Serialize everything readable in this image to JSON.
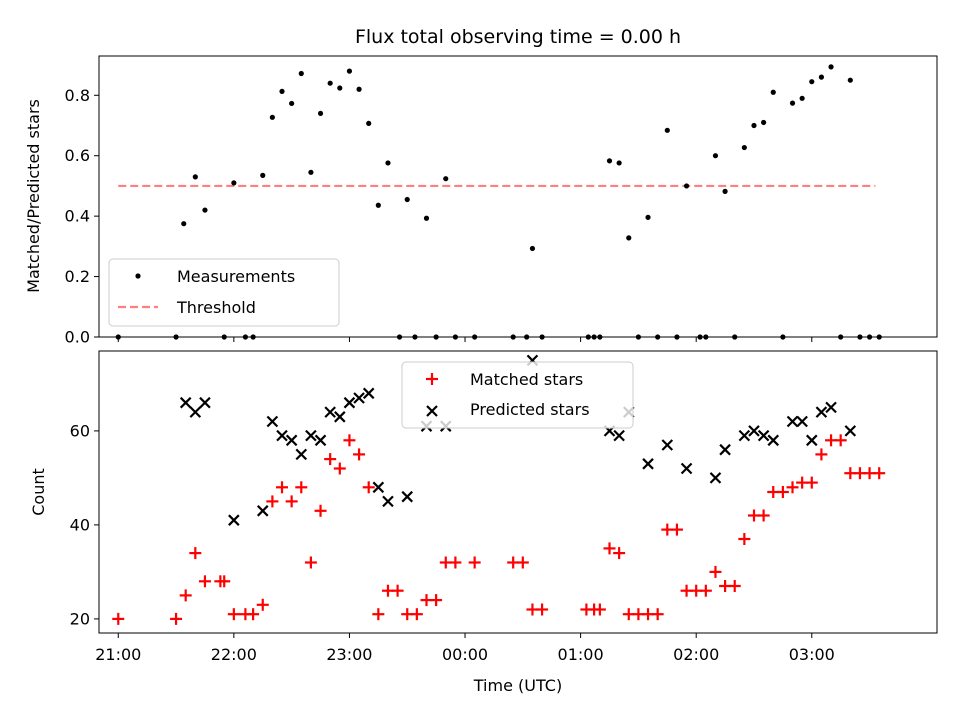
{
  "chart_data": [
    {
      "type": "scatter",
      "title": "Flux total observing time = 0.00 h",
      "xlabel": "",
      "ylabel": "Matched/Predicted stars",
      "xlim": [
        "20:50",
        "04:05"
      ],
      "ylim": [
        0,
        0.93
      ],
      "yticks": [
        "0.0",
        "0.2",
        "0.4",
        "0.6",
        "0.8"
      ],
      "ytick_values": [
        0,
        0.2,
        0.4,
        0.6,
        0.8
      ],
      "xtick_values": [
        "21:00",
        "22:00",
        "23:00",
        "00:00",
        "01:00",
        "02:00",
        "03:00"
      ],
      "grid": false,
      "legend": {
        "position": "lower-left",
        "entries": [
          "Measurements",
          "Threshold"
        ]
      },
      "threshold": {
        "name": "Threshold",
        "y": 0.5,
        "x_start": "21:00",
        "x_end": "03:33",
        "color": "#ff7f7f"
      },
      "series": [
        {
          "name": "Measurements",
          "color": "#000000",
          "points": [
            [
              "21:00",
              0.0
            ],
            [
              "21:30",
              0.0
            ],
            [
              "21:34",
              0.375
            ],
            [
              "21:40",
              0.53
            ],
            [
              "21:45",
              0.42
            ],
            [
              "21:55",
              0.0
            ],
            [
              "22:00",
              0.51
            ],
            [
              "22:06",
              0.0
            ],
            [
              "22:10",
              0.0
            ],
            [
              "22:15",
              0.535
            ],
            [
              "22:20",
              0.727
            ],
            [
              "22:25",
              0.813
            ],
            [
              "22:30",
              0.773
            ],
            [
              "22:35",
              0.872
            ],
            [
              "22:40",
              0.545
            ],
            [
              "22:45",
              0.74
            ],
            [
              "22:50",
              0.84
            ],
            [
              "22:55",
              0.824
            ],
            [
              "23:00",
              0.88
            ],
            [
              "23:05",
              0.82
            ],
            [
              "23:10",
              0.707
            ],
            [
              "23:15",
              0.436
            ],
            [
              "23:20",
              0.576
            ],
            [
              "23:26",
              0.0
            ],
            [
              "23:30",
              0.455
            ],
            [
              "23:34",
              0.0
            ],
            [
              "23:40",
              0.393
            ],
            [
              "23:45",
              0.0
            ],
            [
              "23:50",
              0.524
            ],
            [
              "23:55",
              0.0
            ],
            [
              "00:05",
              0.0
            ],
            [
              "00:25",
              0.0
            ],
            [
              "00:32",
              0.0
            ],
            [
              "00:35",
              0.293
            ],
            [
              "00:40",
              0.0
            ],
            [
              "01:04",
              0.0
            ],
            [
              "01:07",
              0.0
            ],
            [
              "01:10",
              0.0
            ],
            [
              "01:15",
              0.583
            ],
            [
              "01:20",
              0.576
            ],
            [
              "01:25",
              0.328
            ],
            [
              "01:30",
              0.0
            ],
            [
              "01:35",
              0.396
            ],
            [
              "01:40",
              0.0
            ],
            [
              "01:45",
              0.684
            ],
            [
              "01:50",
              0.0
            ],
            [
              "01:55",
              0.5
            ],
            [
              "02:02",
              0.0
            ],
            [
              "02:05",
              0.0
            ],
            [
              "02:10",
              0.6
            ],
            [
              "02:15",
              0.482
            ],
            [
              "02:20",
              0.0
            ],
            [
              "02:25",
              0.627
            ],
            [
              "02:30",
              0.7
            ],
            [
              "02:35",
              0.71
            ],
            [
              "02:40",
              0.81
            ],
            [
              "02:45",
              0.0
            ],
            [
              "02:50",
              0.774
            ],
            [
              "02:55",
              0.79
            ],
            [
              "03:00",
              0.845
            ],
            [
              "03:05",
              0.86
            ],
            [
              "03:10",
              0.894
            ],
            [
              "03:15",
              0.0
            ],
            [
              "03:20",
              0.85
            ],
            [
              "03:25",
              0.0
            ],
            [
              "03:30",
              0.0
            ],
            [
              "03:35",
              0.0
            ]
          ]
        }
      ]
    },
    {
      "type": "scatter",
      "title": "",
      "xlabel": "Time (UTC)",
      "ylabel": "Count",
      "xlim": [
        "20:50",
        "04:05"
      ],
      "ylim": [
        17,
        77
      ],
      "yticks": [
        "20",
        "40",
        "60"
      ],
      "ytick_values": [
        20,
        40,
        60
      ],
      "xticks": [
        "21:00",
        "22:00",
        "23:00",
        "00:00",
        "01:00",
        "02:00",
        "03:00"
      ],
      "grid": false,
      "legend": {
        "position": "upper-center",
        "entries": [
          "Matched stars",
          "Predicted stars"
        ]
      },
      "series": [
        {
          "name": "Matched stars",
          "color": "#ff0000",
          "marker": "plus",
          "points": [
            [
              "21:00",
              20
            ],
            [
              "21:30",
              20
            ],
            [
              "21:35",
              25
            ],
            [
              "21:40",
              34
            ],
            [
              "21:45",
              28
            ],
            [
              "21:53",
              28
            ],
            [
              "21:55",
              28
            ],
            [
              "22:00",
              21
            ],
            [
              "22:06",
              21
            ],
            [
              "22:10",
              21
            ],
            [
              "22:15",
              23
            ],
            [
              "22:20",
              45
            ],
            [
              "22:25",
              48
            ],
            [
              "22:30",
              45
            ],
            [
              "22:35",
              48
            ],
            [
              "22:40",
              32
            ],
            [
              "22:45",
              43
            ],
            [
              "22:50",
              54
            ],
            [
              "22:55",
              52
            ],
            [
              "23:00",
              58
            ],
            [
              "23:05",
              55
            ],
            [
              "23:10",
              48
            ],
            [
              "23:15",
              21
            ],
            [
              "23:20",
              26
            ],
            [
              "23:25",
              26
            ],
            [
              "23:30",
              21
            ],
            [
              "23:35",
              21
            ],
            [
              "23:40",
              24
            ],
            [
              "23:45",
              24
            ],
            [
              "23:50",
              32
            ],
            [
              "23:55",
              32
            ],
            [
              "00:05",
              32
            ],
            [
              "00:25",
              32
            ],
            [
              "00:30",
              32
            ],
            [
              "00:35",
              22
            ],
            [
              "00:40",
              22
            ],
            [
              "01:03",
              22
            ],
            [
              "01:07",
              22
            ],
            [
              "01:10",
              22
            ],
            [
              "01:15",
              35
            ],
            [
              "01:20",
              34
            ],
            [
              "01:25",
              21
            ],
            [
              "01:30",
              21
            ],
            [
              "01:35",
              21
            ],
            [
              "01:40",
              21
            ],
            [
              "01:45",
              39
            ],
            [
              "01:50",
              39
            ],
            [
              "01:55",
              26
            ],
            [
              "02:00",
              26
            ],
            [
              "02:05",
              26
            ],
            [
              "02:10",
              30
            ],
            [
              "02:15",
              27
            ],
            [
              "02:20",
              27
            ],
            [
              "02:25",
              37
            ],
            [
              "02:30",
              42
            ],
            [
              "02:35",
              42
            ],
            [
              "02:40",
              47
            ],
            [
              "02:45",
              47
            ],
            [
              "02:50",
              48
            ],
            [
              "02:55",
              49
            ],
            [
              "03:00",
              49
            ],
            [
              "03:05",
              55
            ],
            [
              "03:10",
              58
            ],
            [
              "03:15",
              58
            ],
            [
              "03:20",
              51
            ],
            [
              "03:25",
              51
            ],
            [
              "03:30",
              51
            ],
            [
              "03:35",
              51
            ]
          ]
        },
        {
          "name": "Predicted stars",
          "color": "#000000",
          "marker": "x",
          "points": [
            [
              "21:35",
              66
            ],
            [
              "21:40",
              64
            ],
            [
              "21:45",
              66
            ],
            [
              "22:00",
              41
            ],
            [
              "22:15",
              43
            ],
            [
              "22:20",
              62
            ],
            [
              "22:25",
              59
            ],
            [
              "22:30",
              58
            ],
            [
              "22:35",
              55
            ],
            [
              "22:40",
              59
            ],
            [
              "22:45",
              58
            ],
            [
              "22:50",
              64
            ],
            [
              "22:55",
              63
            ],
            [
              "23:00",
              66
            ],
            [
              "23:05",
              67
            ],
            [
              "23:10",
              68
            ],
            [
              "23:15",
              48
            ],
            [
              "23:20",
              45
            ],
            [
              "23:30",
              46
            ],
            [
              "23:40",
              61
            ],
            [
              "23:50",
              61
            ],
            [
              "00:35",
              75
            ],
            [
              "01:15",
              60
            ],
            [
              "01:20",
              59
            ],
            [
              "01:25",
              64
            ],
            [
              "01:35",
              53
            ],
            [
              "01:45",
              57
            ],
            [
              "01:55",
              52
            ],
            [
              "02:10",
              50
            ],
            [
              "02:15",
              56
            ],
            [
              "02:25",
              59
            ],
            [
              "02:30",
              60
            ],
            [
              "02:35",
              59
            ],
            [
              "02:40",
              58
            ],
            [
              "02:50",
              62
            ],
            [
              "02:55",
              62
            ],
            [
              "03:00",
              58
            ],
            [
              "03:05",
              64
            ],
            [
              "03:10",
              65
            ],
            [
              "03:20",
              60
            ]
          ]
        }
      ]
    }
  ]
}
